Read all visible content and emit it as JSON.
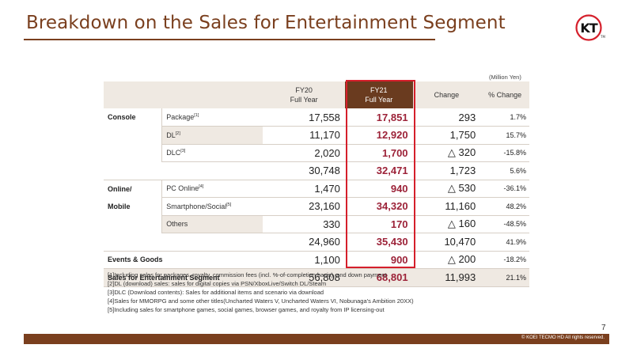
{
  "title": "Breakdown on the Sales for Entertainment Segment",
  "logo": {
    "text": "KT",
    "tm": "TM"
  },
  "unit": "(Million Yen)",
  "headers": {
    "fy20": [
      "FY20",
      "Full Year"
    ],
    "fy21": [
      "FY21",
      "Full Year"
    ],
    "change": "Change",
    "pct": "% Change"
  },
  "rows": [
    {
      "seg": "Console",
      "sub": "Package",
      "sup": "[1]",
      "fy20": "17,558",
      "fy21": "17,851",
      "change": "293",
      "pct": "1.7%"
    },
    {
      "seg": "",
      "sub": "DL",
      "sup": "[2]",
      "fy20": "11,170",
      "fy21": "12,920",
      "change": "1,750",
      "pct": "15.7%"
    },
    {
      "seg": "",
      "sub": "DLC",
      "sup": "[3]",
      "fy20": "2,020",
      "fy21": "1,700",
      "change": "△ 320",
      "pct": "-15.8%"
    },
    {
      "seg": "",
      "sub": "",
      "sup": "",
      "fy20": "30,748",
      "fy21": "32,471",
      "change": "1,723",
      "pct": "5.6%"
    },
    {
      "seg": "Online/",
      "sub": "PC Online",
      "sup": "[4]",
      "fy20": "1,470",
      "fy21": "940",
      "change": "△ 530",
      "pct": "-36.1%"
    },
    {
      "seg": "Mobile",
      "sub": "Smartphone/Social",
      "sup": "[5]",
      "fy20": "23,160",
      "fy21": "34,320",
      "change": "11,160",
      "pct": "48.2%"
    },
    {
      "seg": "",
      "sub": "Others",
      "sup": "",
      "fy20": "330",
      "fy21": "170",
      "change": "△ 160",
      "pct": "-48.5%"
    },
    {
      "seg": "",
      "sub": "",
      "sup": "",
      "fy20": "24,960",
      "fy21": "35,430",
      "change": "10,470",
      "pct": "41.9%"
    },
    {
      "seg": "Events & Goods",
      "sub": "",
      "sup": "",
      "fy20": "1,100",
      "fy21": "900",
      "change": "△ 200",
      "pct": "-18.2%"
    },
    {
      "seg": "Sales for Entertainment Segment",
      "sub": "",
      "sup": "",
      "fy20": "56,808",
      "fy21": "68,801",
      "change": "11,993",
      "pct": "21.1%"
    }
  ],
  "notes": [
    "[1]Including sales for packages, royalty, commission fees (incl. %-of-completion basis), and down payment",
    "[2]DL (download) sales: sales for digital copies via PSN/XboxLive/Switch DL/Steam",
    "[3]DLC (Download contents): Sales for additional items and scenario via download",
    "[4]Sales for MMORPG and some other titles(Uncharted Waters V, Uncharted Waters VI, Nobunaga's Ambition 20XX)",
    "[5]Including sales for smartphone games, social games, browser games, and royalty from IP licensing-out"
  ],
  "page_number": "7",
  "copyright": "© KOEI TECMO HD All rights reserved.",
  "colors": {
    "accent": "#7a3f1e",
    "highlight": "#d51f2b",
    "fy21_text": "#9c2238"
  }
}
